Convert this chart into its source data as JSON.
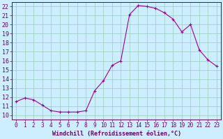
{
  "x": [
    0,
    1,
    2,
    3,
    4,
    5,
    6,
    7,
    8,
    9,
    10,
    11,
    12,
    13,
    14,
    15,
    16,
    17,
    18,
    19,
    20,
    21,
    22,
    23
  ],
  "y": [
    11.5,
    11.9,
    11.7,
    11.1,
    10.5,
    10.35,
    10.35,
    10.35,
    10.5,
    12.7,
    13.8,
    15.5,
    16.0,
    21.1,
    22.1,
    22.0,
    21.8,
    21.3,
    20.6,
    19.2,
    20.0,
    17.2,
    16.1,
    15.4
  ],
  "line_color": "#990099",
  "marker": "+",
  "marker_size": 3,
  "marker_linewidth": 0.8,
  "line_width": 0.8,
  "bg_color": "#cceeff",
  "grid_color": "#99ccbb",
  "xlabel": "Windchill (Refroidissement éolien,°C)",
  "xlabel_color": "#660066",
  "tick_color": "#660066",
  "ylim_min": 9.5,
  "ylim_max": 22.5,
  "xlim_min": -0.5,
  "xlim_max": 23.5,
  "yticks": [
    10,
    11,
    12,
    13,
    14,
    15,
    16,
    17,
    18,
    19,
    20,
    21,
    22
  ],
  "xticks": [
    0,
    1,
    2,
    3,
    4,
    5,
    6,
    7,
    8,
    9,
    10,
    11,
    12,
    13,
    14,
    15,
    16,
    17,
    18,
    19,
    20,
    21,
    22,
    23
  ],
  "tick_fontsize": 5.5,
  "xlabel_fontsize": 6.0
}
